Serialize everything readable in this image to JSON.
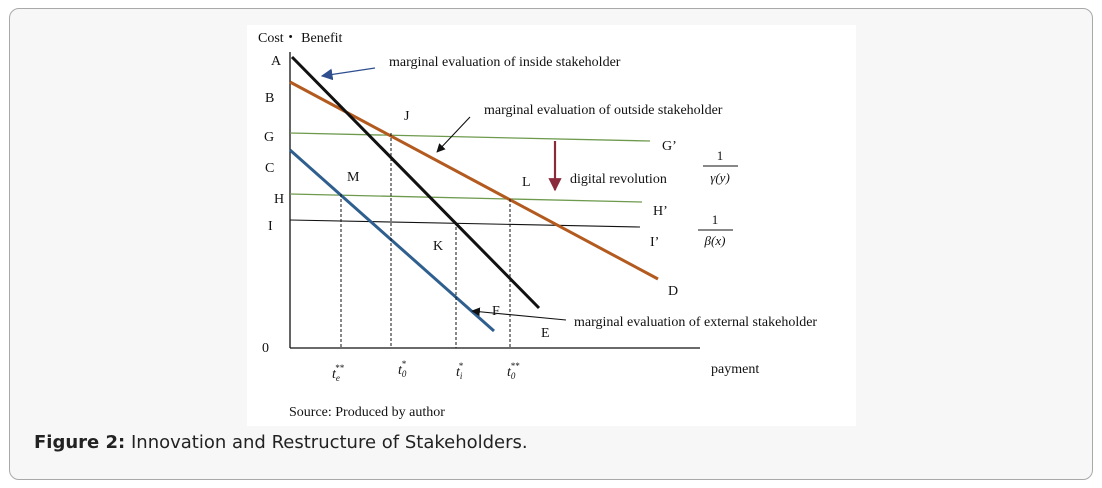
{
  "figure": {
    "y_axis_label": "Cost・ Benefit",
    "x_axis_label": "payment",
    "origin_label": "0",
    "source_note": "Source: Produced by author",
    "point_labels": {
      "A": "A",
      "B": "B",
      "G": "G",
      "C": "C",
      "H": "H",
      "I": "I",
      "J": "J",
      "M": "M",
      "L": "L",
      "K": "K",
      "F": "F",
      "E": "E",
      "D": "D",
      "G_prime": "G’",
      "H_prime": "H’",
      "I_prime": "I’"
    },
    "annotations": {
      "inside": "marginal evaluation of inside stakeholder",
      "outside": "marginal evaluation of outside stakeholder",
      "external": "marginal evaluation of external stakeholder",
      "digital": "digital revolution"
    },
    "fractions": {
      "gamma": {
        "numerator": "1",
        "denominator": "γ(y)"
      },
      "beta": {
        "numerator": "1",
        "denominator": "β(x)"
      }
    },
    "x_ticks": {
      "te": {
        "base": "t",
        "sub": "e",
        "sup": "**"
      },
      "t0": {
        "base": "t",
        "sub": "0",
        "sup": "*"
      },
      "ti": {
        "base": "t",
        "sub": "i",
        "sup": "*"
      },
      "t0b": {
        "base": "t",
        "sub": "0",
        "sup": "**"
      }
    },
    "colors": {
      "inside_line": "#111111",
      "outside_line": "#b35a1f",
      "external_line": "#2f5f8f",
      "green_lines": "#6e9a4e",
      "arrow_blue": "#2f4f8f",
      "digital_arrow": "#8b2a3c"
    }
  },
  "caption": {
    "label": "Figure 2:",
    "text": " Innovation and Restructure of Stakeholders."
  }
}
